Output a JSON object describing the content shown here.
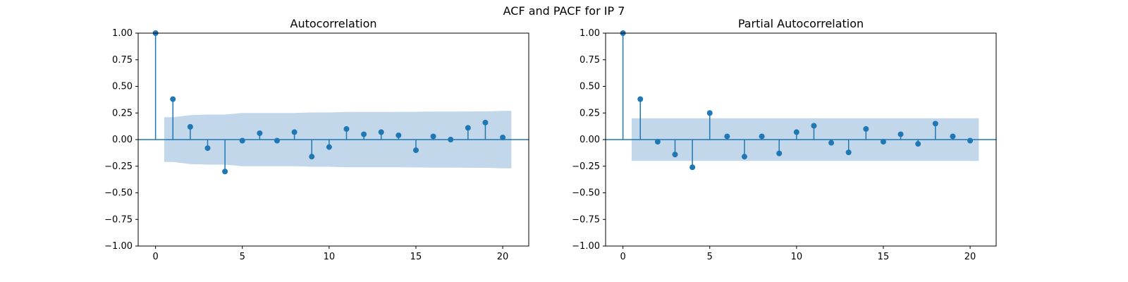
{
  "figure": {
    "suptitle": "ACF and PACF for IP 7"
  },
  "colors": {
    "stem": "#1f77b4",
    "confidence_band": "#b3cde3",
    "axis": "#000000",
    "text": "#000000"
  },
  "chart_data": [
    {
      "type": "stem",
      "title": "Autocorrelation",
      "xlabel": "",
      "ylabel": "",
      "xlim": [
        -1,
        21.5
      ],
      "ylim": [
        -1.0,
        1.0
      ],
      "xticks": [
        0,
        5,
        10,
        15,
        20
      ],
      "yticks": [
        -1.0,
        -0.75,
        -0.5,
        -0.25,
        0.0,
        0.25,
        0.5,
        0.75,
        1.0
      ],
      "ytick_labels": [
        "−1.00",
        "−0.75",
        "−0.50",
        "−0.25",
        "0.00",
        "0.25",
        "0.50",
        "0.75",
        "1.00"
      ],
      "xtick_labels": [
        "0",
        "5",
        "10",
        "15",
        "20"
      ],
      "grid": false,
      "lags": [
        0,
        1,
        2,
        3,
        4,
        5,
        6,
        7,
        8,
        9,
        10,
        11,
        12,
        13,
        14,
        15,
        16,
        17,
        18,
        19,
        20
      ],
      "values": [
        1.0,
        0.38,
        0.12,
        -0.08,
        -0.3,
        -0.01,
        0.06,
        -0.01,
        0.07,
        -0.16,
        -0.07,
        0.1,
        0.05,
        0.07,
        0.04,
        -0.1,
        0.03,
        0.0,
        0.11,
        0.16,
        0.02
      ],
      "confidence_band": {
        "lags": [
          0.5,
          1,
          2,
          3,
          4,
          5,
          6,
          7,
          8,
          9,
          10,
          11,
          12,
          13,
          14,
          15,
          16,
          17,
          18,
          19,
          20,
          20.5
        ],
        "upper": [
          0.21,
          0.21,
          0.23,
          0.235,
          0.235,
          0.25,
          0.25,
          0.25,
          0.25,
          0.255,
          0.255,
          0.26,
          0.26,
          0.26,
          0.26,
          0.262,
          0.263,
          0.263,
          0.264,
          0.265,
          0.27,
          0.27
        ]
      }
    },
    {
      "type": "stem",
      "title": "Partial Autocorrelation",
      "xlabel": "",
      "ylabel": "",
      "xlim": [
        -1,
        21.5
      ],
      "ylim": [
        -1.0,
        1.0
      ],
      "xticks": [
        0,
        5,
        10,
        15,
        20
      ],
      "yticks": [
        -1.0,
        -0.75,
        -0.5,
        -0.25,
        0.0,
        0.25,
        0.5,
        0.75,
        1.0
      ],
      "ytick_labels": [
        "−1.00",
        "−0.75",
        "−0.50",
        "−0.25",
        "0.00",
        "0.25",
        "0.50",
        "0.75",
        "1.00"
      ],
      "xtick_labels": [
        "0",
        "5",
        "10",
        "15",
        "20"
      ],
      "grid": false,
      "lags": [
        0,
        1,
        2,
        3,
        4,
        5,
        6,
        7,
        8,
        9,
        10,
        11,
        12,
        13,
        14,
        15,
        16,
        17,
        18,
        19,
        20
      ],
      "values": [
        1.0,
        0.38,
        -0.02,
        -0.14,
        -0.26,
        0.25,
        0.03,
        -0.16,
        0.03,
        -0.13,
        0.07,
        0.13,
        -0.03,
        -0.12,
        0.1,
        -0.02,
        0.05,
        -0.04,
        0.15,
        0.03,
        -0.01
      ],
      "confidence_band": {
        "lags": [
          0.5,
          20.5
        ],
        "upper": [
          0.2,
          0.2
        ]
      }
    }
  ]
}
